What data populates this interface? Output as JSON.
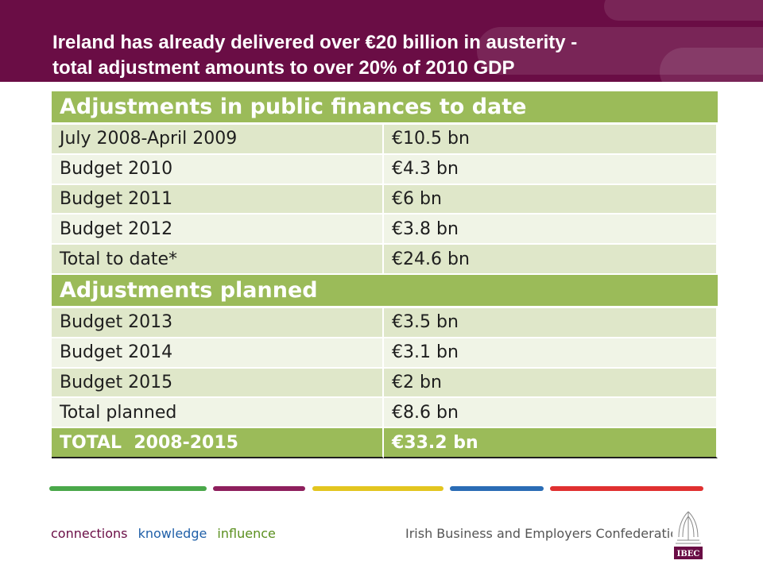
{
  "slide": {
    "title_line1": "Ireland has already delivered over €20 billion in austerity -",
    "title_line2": "total adjustment amounts to over 20% of 2010 GDP"
  },
  "table": {
    "section1_heading": "Adjustments in public finances to date",
    "section1_rows": [
      {
        "label": "July 2008-April 2009",
        "value": "€10.5 bn"
      },
      {
        "label": "Budget 2010",
        "value": "€4.3 bn"
      },
      {
        "label": "Budget 2011",
        "value": "€6 bn"
      },
      {
        "label": "Budget 2012",
        "value": "€3.8 bn"
      },
      {
        "label": "Total to date*",
        "value": "€24.6 bn"
      }
    ],
    "section2_heading": "Adjustments planned",
    "section2_rows": [
      {
        "label": "Budget 2013",
        "value": "€3.5 bn"
      },
      {
        "label": "Budget 2014",
        "value": "€3.1 bn"
      },
      {
        "label": "Budget 2015",
        "value": "€2 bn"
      },
      {
        "label": "Total planned",
        "value": "€8.6 bn"
      }
    ],
    "grand_total": {
      "label": "TOTAL  2008-2015",
      "value": "€33.2 bn"
    }
  },
  "footer": {
    "tag1": "connections",
    "tag2": "knowledge",
    "tag3": "influence",
    "organisation": "Irish Business and Employers Confederation",
    "logo_text": "IBEC"
  },
  "colors": {
    "header": "#6a0d45",
    "accent_green": "#9bbb59",
    "tag1": "#6a0d45",
    "tag2": "#1f5fa8",
    "tag3": "#5a8f1e",
    "bar_green": "#4aa84a",
    "bar_purple": "#8e1f5d",
    "bar_yellow": "#e3c51f",
    "bar_blue": "#2a6cb5",
    "bar_red": "#e03030"
  }
}
